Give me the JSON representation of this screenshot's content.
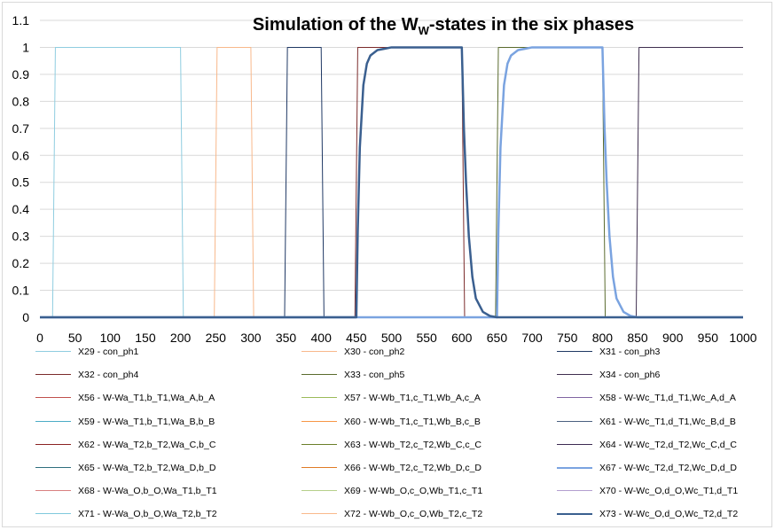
{
  "chart_data": {
    "type": "line",
    "title": {
      "pre": "Simulation of the W",
      "sub": "W",
      "post": "-states in the six phases"
    },
    "xlabel": "",
    "ylabel": "",
    "xlim": [
      0,
      1000
    ],
    "ylim": [
      0,
      1.1
    ],
    "xticks": [
      "0",
      "50",
      "100",
      "150",
      "200",
      "250",
      "300",
      "350",
      "400",
      "450",
      "500",
      "550",
      "600",
      "650",
      "700",
      "750",
      "800",
      "850",
      "900",
      "950",
      "1000"
    ],
    "yticks": [
      "0",
      "0.1",
      "0.2",
      "0.3",
      "0.4",
      "0.5",
      "0.6",
      "0.7",
      "0.8",
      "0.9",
      "1",
      "1.1"
    ],
    "grid": "horizontal",
    "legend_position": "bottom",
    "series": [
      {
        "name": "X29 - con_ph1",
        "color": "#8fcde0",
        "width": 1,
        "x": [
          0,
          18,
          22,
          200,
          204,
          1000
        ],
        "y": [
          0,
          0,
          1,
          1,
          0,
          0
        ]
      },
      {
        "name": "X30 - con_ph2",
        "color": "#f8b88b",
        "width": 1,
        "x": [
          0,
          248,
          252,
          300,
          304,
          1000
        ],
        "y": [
          0,
          0,
          1,
          1,
          0,
          0
        ]
      },
      {
        "name": "X31 - con_ph3",
        "color": "#1f3864",
        "width": 1,
        "x": [
          0,
          348,
          352,
          400,
          404,
          1000
        ],
        "y": [
          0,
          0,
          1,
          1,
          0,
          0
        ]
      },
      {
        "name": "X32 - con_ph4",
        "color": "#7b2b2b",
        "width": 1,
        "x": [
          0,
          448,
          452,
          600,
          604,
          1000
        ],
        "y": [
          0,
          0,
          1,
          1,
          0,
          0
        ]
      },
      {
        "name": "X33 - con_ph5",
        "color": "#5a6b2e",
        "width": 1,
        "x": [
          0,
          648,
          652,
          800,
          804,
          1000
        ],
        "y": [
          0,
          0,
          1,
          1,
          0,
          0
        ]
      },
      {
        "name": "X34 - con_ph6",
        "color": "#3f2f4f",
        "width": 1,
        "x": [
          0,
          848,
          852,
          1000
        ],
        "y": [
          0,
          0,
          1,
          1
        ]
      },
      {
        "name": "X56 - W-Wa_T1,b_T1,Wa_A,b_A",
        "color": "#c0504d",
        "width": 1,
        "x": [
          0,
          1000
        ],
        "y": [
          0,
          0
        ]
      },
      {
        "name": "X57 - W-Wb_T1,c_T1,Wb_A,c_A",
        "color": "#9bbb59",
        "width": 1,
        "x": [
          0,
          1000
        ],
        "y": [
          0,
          0
        ]
      },
      {
        "name": "X58 - W-Wc_T1,d_T1,Wc_A,d_A",
        "color": "#8064a2",
        "width": 1,
        "x": [
          0,
          1000
        ],
        "y": [
          0,
          0
        ]
      },
      {
        "name": "X59 - W-Wa_T1,b_T1,Wa_B,b_B",
        "color": "#4bacc6",
        "width": 1,
        "x": [
          0,
          1000
        ],
        "y": [
          0,
          0
        ]
      },
      {
        "name": "X60 - W-Wb_T1,c_T1,Wb_B,c_B",
        "color": "#f79646",
        "width": 1,
        "x": [
          0,
          1000
        ],
        "y": [
          0,
          0
        ]
      },
      {
        "name": "X61 - W-Wc_T1,d_T1,Wc_B,d_B",
        "color": "#4a6080",
        "width": 1,
        "x": [
          0,
          1000
        ],
        "y": [
          0,
          0
        ]
      },
      {
        "name": "X62 - W-Wa_T2,b_T2,Wa_C,b_C",
        "color": "#8b2323",
        "width": 1,
        "x": [
          0,
          1000
        ],
        "y": [
          0,
          0
        ]
      },
      {
        "name": "X63 - W-Wb_T2,c_T2,Wb_C,c_C",
        "color": "#6b7f2a",
        "width": 1,
        "x": [
          0,
          1000
        ],
        "y": [
          0,
          0
        ]
      },
      {
        "name": "X64 - W-Wc_T2,d_T2,Wc_C,d_C",
        "color": "#3d2b52",
        "width": 1,
        "x": [
          0,
          1000
        ],
        "y": [
          0,
          0
        ]
      },
      {
        "name": "X65 - W-Wa_T2,b_T2,Wa_D,b_D",
        "color": "#2e6e7e",
        "width": 1,
        "x": [
          0,
          1000
        ],
        "y": [
          0,
          0
        ]
      },
      {
        "name": "X66 - W-Wb_T2,c_T2,Wb_D,c_D",
        "color": "#e07b25",
        "width": 1,
        "x": [
          0,
          1000
        ],
        "y": [
          0,
          0
        ]
      },
      {
        "name": "X67 - W-Wc_T2,d_T2,Wc_D,d_D",
        "color": "#7aa3e0",
        "width": 2.5,
        "x": [
          0,
          650,
          652,
          655,
          660,
          665,
          670,
          680,
          690,
          700,
          720,
          750,
          800,
          803,
          806,
          810,
          815,
          820,
          830,
          840,
          850,
          1000
        ],
        "y": [
          0,
          0,
          0.32,
          0.63,
          0.86,
          0.94,
          0.97,
          0.99,
          0.995,
          1,
          1,
          1,
          1,
          0.7,
          0.5,
          0.3,
          0.15,
          0.07,
          0.02,
          0.005,
          0,
          0
        ]
      },
      {
        "name": "X68 - W-Wa_O,b_O,Wa_T1,b_T1",
        "color": "#d98080",
        "width": 1,
        "x": [
          0,
          1000
        ],
        "y": [
          0,
          0
        ]
      },
      {
        "name": "X69 - W-Wb_O,c_O,Wb_T1,c_T1",
        "color": "#b5d08a",
        "width": 1,
        "x": [
          0,
          1000
        ],
        "y": [
          0,
          0
        ]
      },
      {
        "name": "X70 - W-Wc_O,d_O,Wc_T1,d_T1",
        "color": "#b39fcf",
        "width": 1,
        "x": [
          0,
          1000
        ],
        "y": [
          0,
          0
        ]
      },
      {
        "name": "X71 - W-Wa_O,b_O,Wa_T2,b_T2",
        "color": "#7fc9dc",
        "width": 1,
        "x": [
          0,
          1000
        ],
        "y": [
          0,
          0
        ]
      },
      {
        "name": "X72 - W-Wb_O,c_O,Wb_T2,c_T2",
        "color": "#f9b98a",
        "width": 1,
        "x": [
          0,
          1000
        ],
        "y": [
          0,
          0
        ]
      },
      {
        "name": "X73 - W-Wc_O,d_O,Wc_T2,d_T2",
        "color": "#3a5f8f",
        "width": 2.5,
        "x": [
          0,
          450,
          452,
          455,
          460,
          465,
          470,
          480,
          490,
          500,
          550,
          600,
          603,
          606,
          610,
          615,
          620,
          630,
          640,
          650,
          1000
        ],
        "y": [
          0,
          0,
          0.32,
          0.63,
          0.86,
          0.94,
          0.97,
          0.99,
          0.995,
          1,
          1,
          1,
          0.7,
          0.5,
          0.3,
          0.15,
          0.07,
          0.02,
          0.005,
          0,
          0
        ]
      }
    ]
  }
}
